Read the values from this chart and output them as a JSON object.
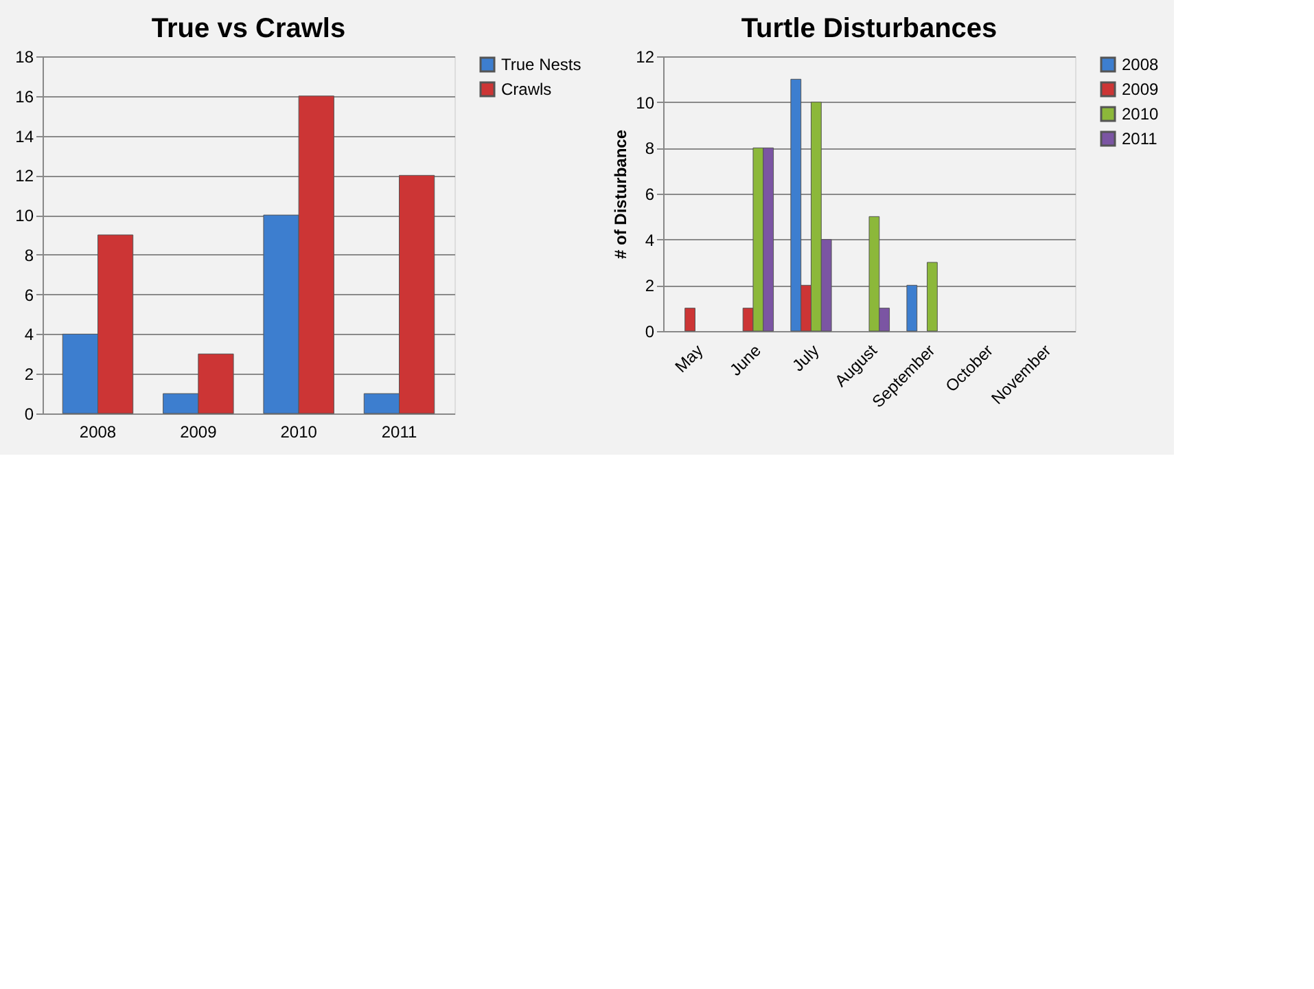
{
  "chart_data": [
    {
      "type": "bar",
      "title": "True vs Crawls",
      "categories": [
        "2008",
        "2009",
        "2010",
        "2011"
      ],
      "series": [
        {
          "name": "True Nests",
          "color": "#3d7ecf",
          "values": [
            4,
            1,
            10,
            1
          ]
        },
        {
          "name": "Crawls",
          "color": "#cc3535",
          "values": [
            9,
            3,
            16,
            12
          ]
        }
      ],
      "ylim": [
        0,
        18
      ],
      "yticks": [
        0,
        2,
        4,
        6,
        8,
        10,
        12,
        14,
        16,
        18
      ],
      "grid": "y",
      "legend": "right"
    },
    {
      "type": "bar",
      "title": "Turtle Disturbances",
      "ylabel": "# of Disturbance",
      "categories": [
        "May",
        "June",
        "July",
        "August",
        "September",
        "October",
        "November"
      ],
      "series": [
        {
          "name": "2008",
          "color": "#3d7ecf",
          "values": [
            null,
            null,
            11,
            null,
            2,
            null,
            null
          ]
        },
        {
          "name": "2009",
          "color": "#cc3535",
          "values": [
            1,
            1,
            2,
            null,
            null,
            null,
            null
          ]
        },
        {
          "name": "2010",
          "color": "#8cb83a",
          "values": [
            null,
            8,
            10,
            5,
            3,
            null,
            null
          ]
        },
        {
          "name": "2011",
          "color": "#7b55a3",
          "values": [
            null,
            8,
            4,
            1,
            null,
            null,
            null
          ]
        }
      ],
      "ylim": [
        0,
        12
      ],
      "yticks": [
        0,
        2,
        4,
        6,
        8,
        10,
        12
      ],
      "grid": "y",
      "legend": "right"
    }
  ]
}
